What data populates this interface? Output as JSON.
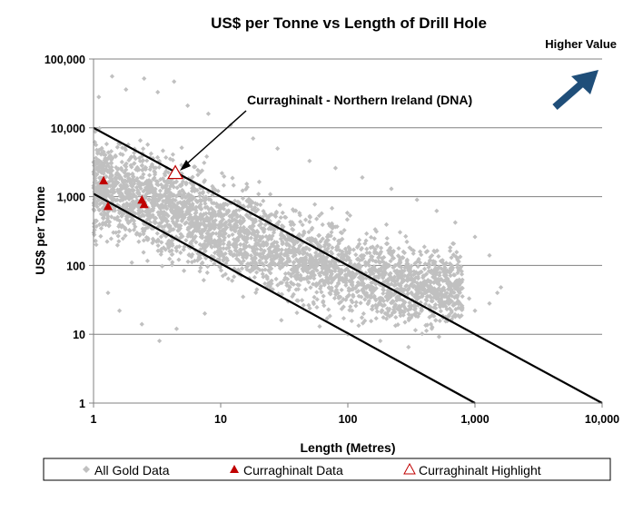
{
  "chart_data": {
    "type": "scatter",
    "title": "US$ per Tonne vs Length of Drill Hole",
    "xlabel": "Length (Metres)",
    "ylabel": "US$ per Tonne",
    "xscale": "log",
    "yscale": "log",
    "xlim": [
      1,
      10000
    ],
    "ylim": [
      1,
      100000
    ],
    "x_ticks": [
      1,
      10,
      100,
      1000,
      10000
    ],
    "x_tick_labels": [
      "1",
      "10",
      "100",
      "1,000",
      "10,000"
    ],
    "y_ticks": [
      1,
      10,
      100,
      1000,
      10000,
      100000
    ],
    "y_tick_labels": [
      "1",
      "10",
      "100",
      "1,000",
      "10,000",
      "100,000"
    ],
    "grid": "horizontal major gridlines",
    "legend_position": "bottom",
    "colors": {
      "gold": "#c0c0c0",
      "curraghinalt": "#c00000",
      "highlight": "#c00000",
      "arrow": "#1f4e79",
      "guide_lines": "#000000"
    },
    "annotations": [
      {
        "text": "Curraghinalt - Northern Ireland (DNA)",
        "points_to": {
          "x": 4.4,
          "y": 2200
        }
      },
      {
        "text": "Higher Value",
        "arrow": "up-right"
      }
    ],
    "reference_lines": [
      {
        "from": {
          "x": 1,
          "y": 10000
        },
        "to": {
          "x": 10000,
          "y": 1
        }
      },
      {
        "from": {
          "x": 1,
          "y": 1100
        },
        "to": {
          "x": 1000,
          "y": 1
        }
      }
    ],
    "series": [
      {
        "name": "All Gold Data",
        "marker": "diamond",
        "density_description": "several thousand points; dense band running from about 1 m / 1,000 US$/t down to about 1,000 m / 40 US$/t",
        "cloud_spine": [
          {
            "x": 1,
            "y": 1500
          },
          {
            "x": 3,
            "y": 800
          },
          {
            "x": 10,
            "y": 350
          },
          {
            "x": 30,
            "y": 160
          },
          {
            "x": 100,
            "y": 80
          },
          {
            "x": 300,
            "y": 55
          },
          {
            "x": 800,
            "y": 45
          }
        ],
        "points": [
          {
            "x": 1.4,
            "y": 56000
          },
          {
            "x": 1.8,
            "y": 36000
          },
          {
            "x": 2.5,
            "y": 52000
          },
          {
            "x": 3.2,
            "y": 33000
          },
          {
            "x": 4.3,
            "y": 47000
          },
          {
            "x": 1.1,
            "y": 28000
          },
          {
            "x": 5.5,
            "y": 21000
          },
          {
            "x": 8.0,
            "y": 16000
          },
          {
            "x": 12,
            "y": 11000
          },
          {
            "x": 18,
            "y": 7000
          },
          {
            "x": 28,
            "y": 5000
          },
          {
            "x": 50,
            "y": 3300
          },
          {
            "x": 80,
            "y": 2600
          },
          {
            "x": 130,
            "y": 1900
          },
          {
            "x": 220,
            "y": 1300
          },
          {
            "x": 350,
            "y": 900
          },
          {
            "x": 500,
            "y": 620
          },
          {
            "x": 700,
            "y": 420
          },
          {
            "x": 1000,
            "y": 260
          },
          {
            "x": 1300,
            "y": 140
          },
          {
            "x": 1.05,
            "y": 200
          },
          {
            "x": 1.3,
            "y": 40
          },
          {
            "x": 1.6,
            "y": 22
          },
          {
            "x": 2.0,
            "y": 110
          },
          {
            "x": 2.4,
            "y": 14
          },
          {
            "x": 3.3,
            "y": 8
          },
          {
            "x": 4.5,
            "y": 12
          },
          {
            "x": 7.5,
            "y": 20
          },
          {
            "x": 15,
            "y": 35
          },
          {
            "x": 30,
            "y": 16
          },
          {
            "x": 60,
            "y": 13
          },
          {
            "x": 100,
            "y": 10
          },
          {
            "x": 180,
            "y": 8
          },
          {
            "x": 300,
            "y": 6.5
          },
          {
            "x": 450,
            "y": 14
          },
          {
            "x": 700,
            "y": 18
          },
          {
            "x": 1000,
            "y": 22
          },
          {
            "x": 1300,
            "y": 28
          },
          {
            "x": 1500,
            "y": 40
          },
          {
            "x": 1600,
            "y": 48
          },
          {
            "x": 1.05,
            "y": 1000
          },
          {
            "x": 1.2,
            "y": 700
          },
          {
            "x": 1.3,
            "y": 450
          },
          {
            "x": 1.5,
            "y": 300
          },
          {
            "x": 2.0,
            "y": 500
          },
          {
            "x": 2.8,
            "y": 420
          },
          {
            "x": 4.0,
            "y": 350
          },
          {
            "x": 6,
            "y": 260
          },
          {
            "x": 9,
            "y": 190
          },
          {
            "x": 15,
            "y": 130
          },
          {
            "x": 25,
            "y": 90
          },
          {
            "x": 40,
            "y": 70
          },
          {
            "x": 65,
            "y": 55
          },
          {
            "x": 110,
            "y": 45
          },
          {
            "x": 200,
            "y": 35
          },
          {
            "x": 350,
            "y": 32
          },
          {
            "x": 600,
            "y": 30
          },
          {
            "x": 900,
            "y": 33
          }
        ]
      },
      {
        "name": "Curraghinalt Data",
        "marker": "filled-triangle",
        "points": [
          {
            "x": 1.2,
            "y": 1700
          },
          {
            "x": 1.3,
            "y": 720
          },
          {
            "x": 2.4,
            "y": 890
          },
          {
            "x": 2.5,
            "y": 770
          }
        ]
      },
      {
        "name": "Curraghinalt Highlight",
        "marker": "open-triangle",
        "points": [
          {
            "x": 4.4,
            "y": 2200
          }
        ]
      }
    ]
  }
}
